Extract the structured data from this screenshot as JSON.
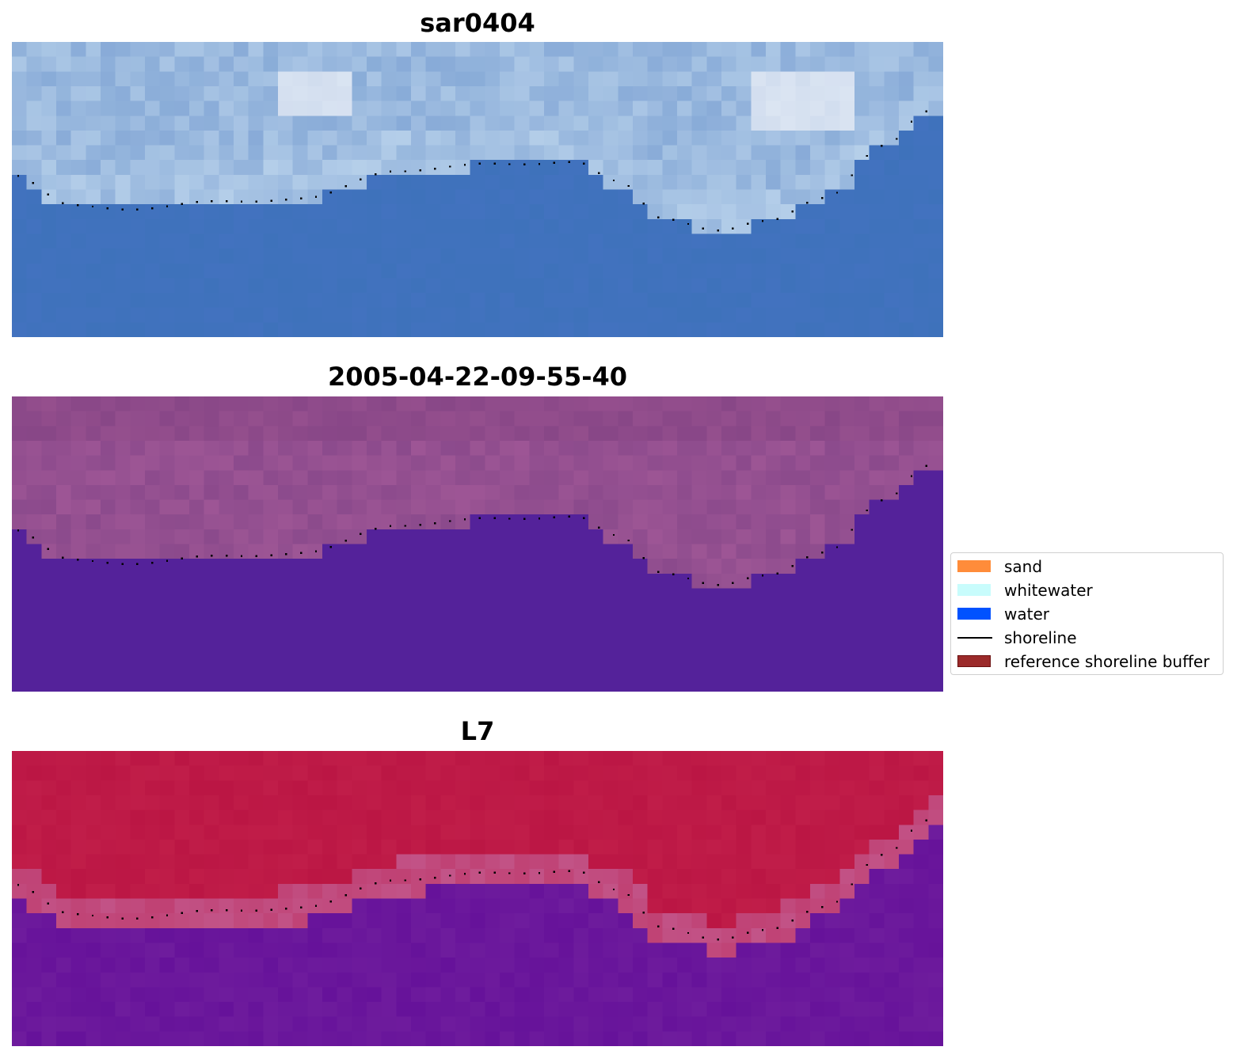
{
  "panels": [
    {
      "title": "sar0404"
    },
    {
      "title": "2005-04-22-09-55-40"
    },
    {
      "title": "L7"
    }
  ],
  "legend": {
    "items": [
      {
        "label": "sand",
        "color": "#ff8c3a",
        "kind": "patch"
      },
      {
        "label": "whitewater",
        "color": "#c8fcfc",
        "kind": "patch"
      },
      {
        "label": "water",
        "color": "#0052ff",
        "kind": "patch"
      },
      {
        "label": "shoreline",
        "color": "#000000",
        "kind": "line"
      },
      {
        "label": "reference shoreline buffer",
        "color": "#9b2a2a",
        "kind": "patch"
      }
    ]
  },
  "colors": {
    "rgb_water": "#3e72bb",
    "classified_land": "#8b4a8c",
    "classified_water": "#54229a",
    "mndwi_land": "#bb1644",
    "mndwi_transition": "#c25488",
    "mndwi_water": "#66129a",
    "shoreline_dots": "#000000"
  }
}
